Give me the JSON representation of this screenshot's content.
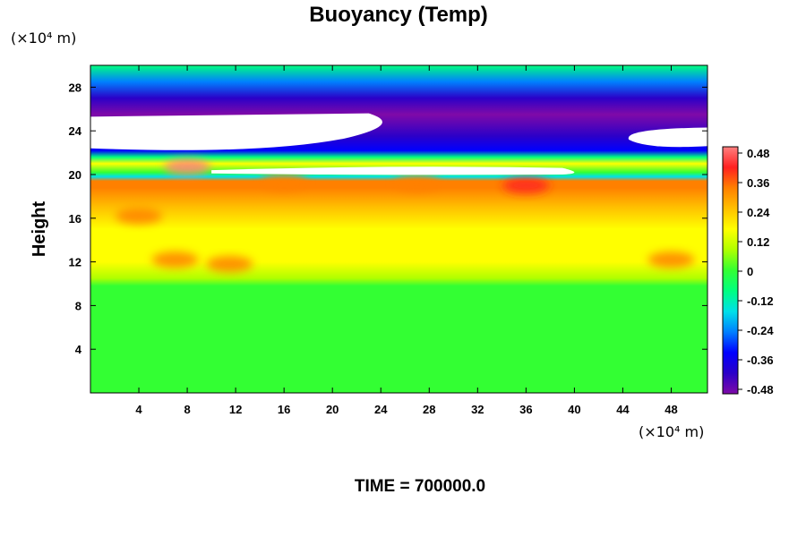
{
  "chart_data": {
    "type": "heatmap",
    "title": "Buoyancy (Temp)",
    "ylabel": "Height",
    "x_unit_label": "(×10⁴ m)",
    "y_unit_label": "(×10⁴ m)",
    "footer": "TIME = 700000.0",
    "x_ticks": [
      4,
      8,
      12,
      16,
      20,
      24,
      28,
      32,
      36,
      40,
      44,
      48
    ],
    "y_ticks": [
      4,
      8,
      12,
      16,
      20,
      24,
      28
    ],
    "xlim": [
      0,
      51
    ],
    "ylim": [
      0,
      30
    ],
    "colorbar": {
      "ticks": [
        "0.48",
        "0.36",
        "0.24",
        "0.12",
        "0",
        "-0.12",
        "-0.24",
        "-0.36",
        "-0.48"
      ],
      "vmin": -0.5,
      "vmax": 0.5,
      "colors": [
        "#7f0aa8",
        "#2b00c8",
        "#0000ff",
        "#0080ff",
        "#00e0e8",
        "#00ff80",
        "#33ff33",
        "#b0ff00",
        "#ffff00",
        "#ffc000",
        "#ff8000",
        "#ff2020",
        "#ff8080"
      ]
    },
    "height_profile": [
      {
        "y": 0,
        "value": 0.0
      },
      {
        "y": 9,
        "value": 0.02
      },
      {
        "y": 9.8,
        "value": 0.04
      },
      {
        "y": 10.5,
        "value": 0.12
      },
      {
        "y": 12,
        "value": 0.15
      },
      {
        "y": 15,
        "value": 0.2
      },
      {
        "y": 17,
        "value": 0.25
      },
      {
        "y": 18.8,
        "value": 0.32
      },
      {
        "y": 19.4,
        "value": 0.3
      },
      {
        "y": 19.8,
        "value": -0.2
      },
      {
        "y": 20.2,
        "value": 0.0
      },
      {
        "y": 21,
        "value": 0.2
      },
      {
        "y": 21.6,
        "value": -0.1
      },
      {
        "y": 22.2,
        "value": -0.35
      },
      {
        "y": 23.5,
        "value": -0.42
      },
      {
        "y": 25.5,
        "value": -0.48
      },
      {
        "y": 27,
        "value": -0.4
      },
      {
        "y": 28.5,
        "value": -0.25
      },
      {
        "y": 30,
        "value": -0.12
      }
    ],
    "hot_spots": [
      {
        "x": 7,
        "y": 12.2,
        "value": 0.34
      },
      {
        "x": 11.5,
        "y": 11.8,
        "value": 0.34
      },
      {
        "x": 4,
        "y": 16.2,
        "value": 0.3
      },
      {
        "x": 48,
        "y": 12.2,
        "value": 0.3
      },
      {
        "x": 36,
        "y": 19,
        "value": 0.38
      },
      {
        "x": 27,
        "y": 19.2,
        "value": 0.36
      },
      {
        "x": 16,
        "y": 19.3,
        "value": 0.35
      },
      {
        "x": 8,
        "y": 20.7,
        "value": 0.48
      }
    ],
    "masked_regions_note": "white areas are values beyond the color scale"
  }
}
